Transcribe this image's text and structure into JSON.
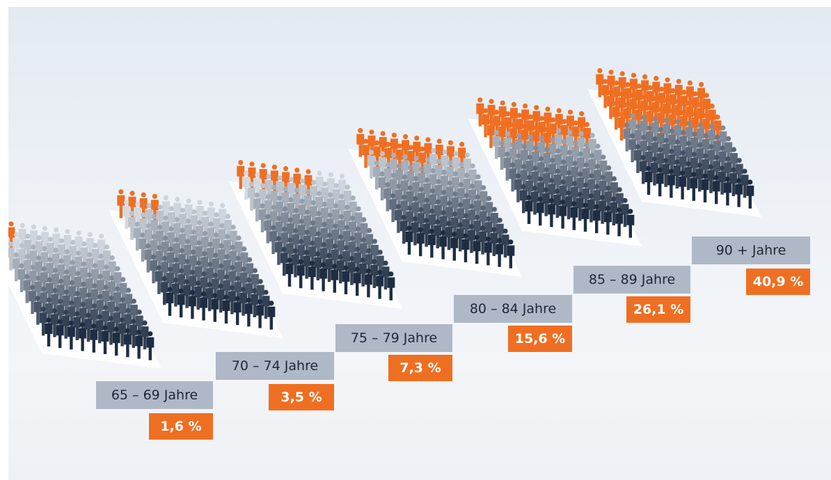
{
  "colors": {
    "orange": "#ef6f22",
    "navy": "#1e2d42",
    "label_bg": "#aeb8c7",
    "text": "#1f2835"
  },
  "chart_data": {
    "type": "bar",
    "title": "",
    "xlabel": "",
    "ylabel": "",
    "categories": [
      "65 – 69 Jahre",
      "70 – 74 Jahre",
      "75 – 79 Jahre",
      "80 – 84 Jahre",
      "85 – 89 Jahre",
      "90 + Jahre"
    ],
    "values": [
      1.6,
      3.5,
      7.3,
      15.6,
      26.1,
      40.9
    ],
    "value_labels": [
      "1,6 %",
      "3,5 %",
      "7,3 %",
      "15,6 %",
      "26,1 %",
      "40,9 %"
    ],
    "unit": "%",
    "ylim": [
      0,
      100
    ],
    "grid": false,
    "legend": "none"
  }
}
